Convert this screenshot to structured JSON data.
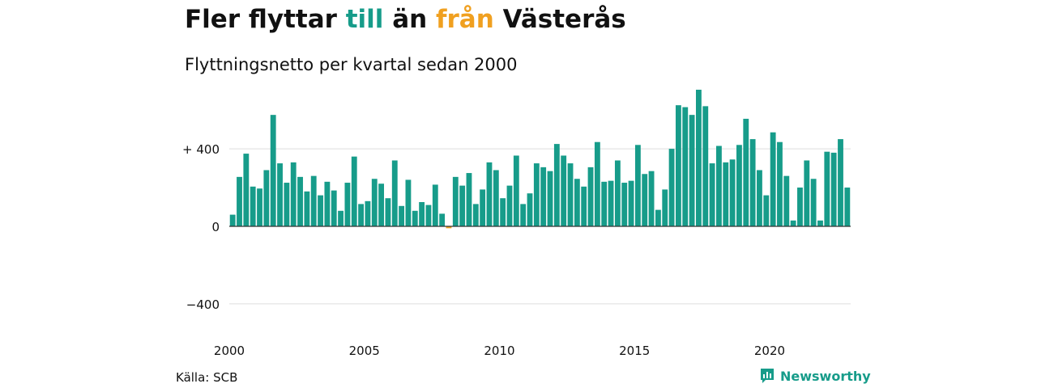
{
  "title": {
    "part1": "Fler flyttar ",
    "part2": "till",
    "part3": " än ",
    "part4": "från",
    "part5": " Västerås"
  },
  "subtitle": "Flyttningsnetto per kvartal sedan 2000",
  "source": "Källa: SCB",
  "brand": "Newsworthy",
  "colors": {
    "positive": "#179c8a",
    "negative": "#f0a020",
    "grid": "#dddddd",
    "zero_line": "#333333"
  },
  "chart_data": {
    "type": "bar",
    "title": "Fler flyttar till än från Västerås",
    "subtitle": "Flyttningsnetto per kvartal sedan 2000",
    "ylim": [
      -530,
      730
    ],
    "yticks": [
      400,
      0,
      -400
    ],
    "ytick_labels": [
      "+ 400",
      "0",
      "−400"
    ],
    "x_start": "2000 Q1",
    "xtick_labels": [
      "2000",
      "2005",
      "2010",
      "2015",
      "2020"
    ],
    "grid": true,
    "values": [
      60,
      255,
      375,
      205,
      195,
      290,
      575,
      325,
      225,
      330,
      255,
      180,
      260,
      160,
      230,
      185,
      80,
      225,
      360,
      115,
      130,
      245,
      220,
      145,
      340,
      105,
      240,
      80,
      125,
      110,
      215,
      65,
      -10,
      255,
      210,
      275,
      115,
      190,
      330,
      290,
      145,
      210,
      365,
      115,
      170,
      325,
      305,
      285,
      425,
      365,
      325,
      245,
      205,
      305,
      435,
      230,
      235,
      340,
      225,
      235,
      420,
      270,
      285,
      85,
      190,
      400,
      625,
      615,
      575,
      705,
      620,
      325,
      415,
      330,
      345,
      420,
      555,
      450,
      290,
      160,
      485,
      435,
      260,
      30,
      200,
      340,
      245,
      30,
      385,
      380,
      450,
      200
    ]
  }
}
